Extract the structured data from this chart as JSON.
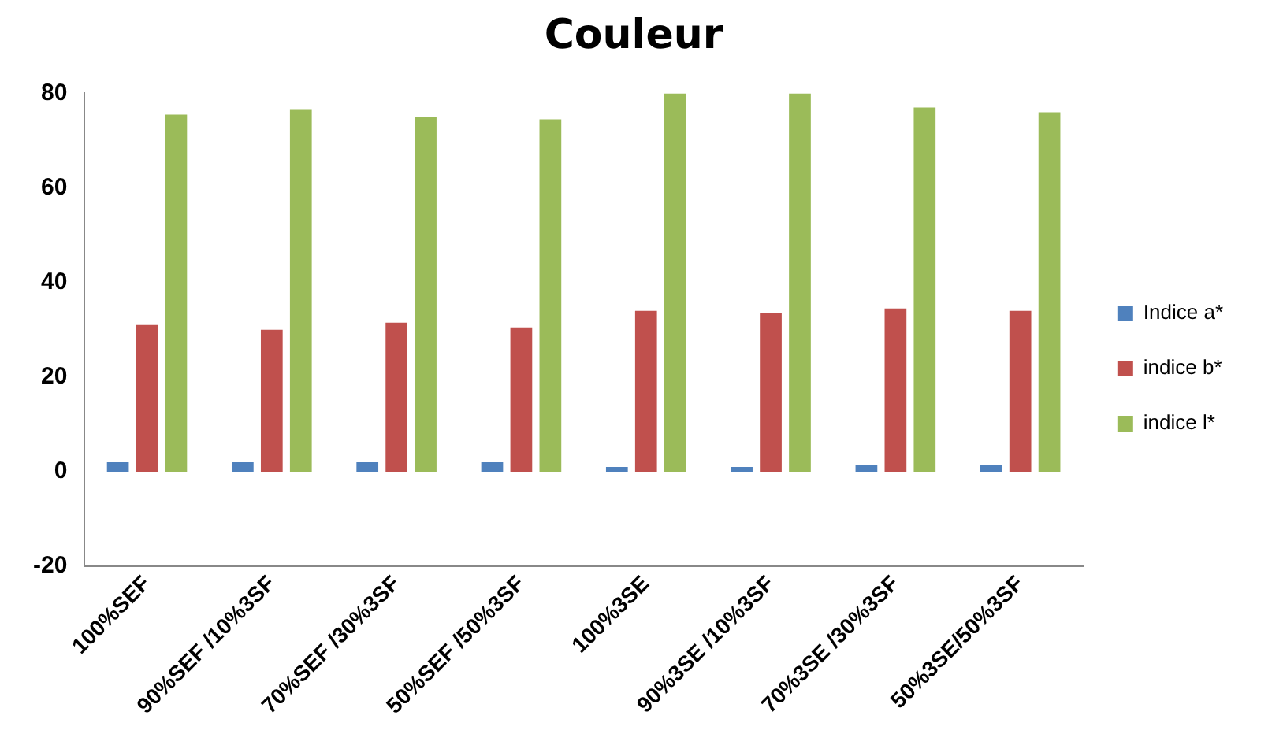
{
  "chart_data": {
    "type": "bar",
    "title": "Couleur",
    "categories": [
      "100%SEF",
      "90%SEF /10%3SF",
      "70%SEF /30%3SF",
      "50%SEF /50%3SF",
      "100%3SE",
      "90%3SE /10%3SF",
      "70%3SE /30%3SF",
      "50%3SE/50%3SF"
    ],
    "series": [
      {
        "name": "Indice a*",
        "color": "#4f81bd",
        "values": [
          2,
          2,
          2,
          2,
          1,
          1,
          1.5,
          1.5
        ]
      },
      {
        "name": "indice b*",
        "color": "#c0504d",
        "values": [
          31,
          30,
          31.5,
          30.5,
          34,
          33.5,
          34.5,
          34
        ]
      },
      {
        "name": "indice l*",
        "color": "#9bbb59",
        "values": [
          75.5,
          76.5,
          75,
          74.5,
          80,
          80,
          77,
          76
        ]
      }
    ],
    "ylim": [
      -20,
      80
    ],
    "yticks": [
      -20,
      0,
      20,
      40,
      60,
      80
    ],
    "grid": false,
    "legend": "right"
  }
}
